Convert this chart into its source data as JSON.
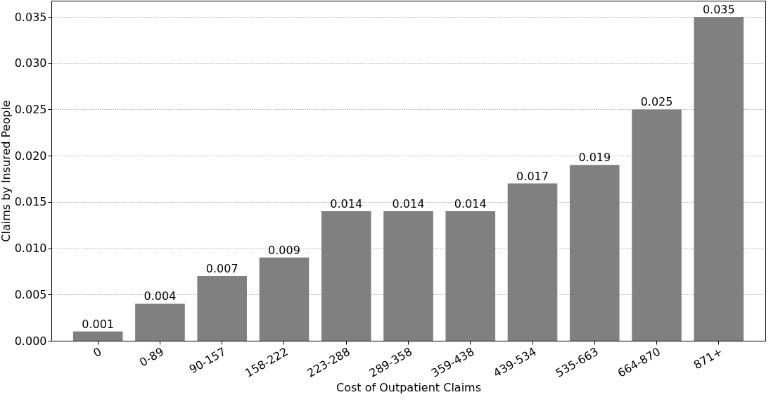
{
  "chart_data": {
    "type": "bar",
    "xlabel": "Cost of Outpatient Claims",
    "ylabel": "Claims by Insured People",
    "categories": [
      "0",
      "0-89",
      "90-157",
      "158-222",
      "223-288",
      "289-358",
      "359-438",
      "439-534",
      "535-663",
      "664-870",
      "871+"
    ],
    "values": [
      0.001,
      0.004,
      0.007,
      0.009,
      0.014,
      0.014,
      0.014,
      0.017,
      0.019,
      0.025,
      0.035
    ],
    "color": "#808080",
    "ylim": [
      0,
      0.03675
    ],
    "yticks": [
      {
        "value": 0,
        "label": "0.000"
      },
      {
        "value": 0.005,
        "label": "0.005"
      },
      {
        "value": 0.01,
        "label": "0.010"
      },
      {
        "value": 0.015,
        "label": "0.015"
      },
      {
        "value": 0.02,
        "label": "0.020"
      },
      {
        "value": 0.025,
        "label": "0.025"
      },
      {
        "value": 0.03,
        "label": "0.030"
      },
      {
        "value": 0.035,
        "label": "0.035"
      }
    ],
    "grid": "y",
    "data_labels": true
  }
}
